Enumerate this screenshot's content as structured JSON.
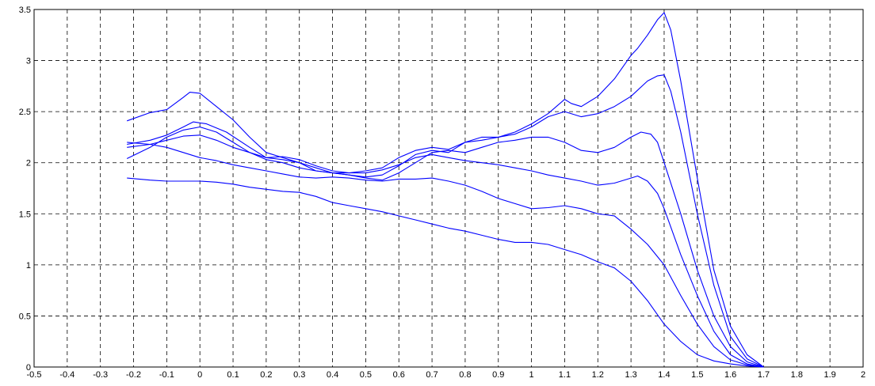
{
  "chart_data": {
    "type": "line",
    "title": "",
    "xlabel": "",
    "ylabel": "",
    "xlim": [
      -0.5,
      2
    ],
    "ylim": [
      0,
      3.5
    ],
    "grid": true,
    "x_ticks": [
      "-0.5",
      "-0.4",
      "-0.3",
      "-0.2",
      "-0.1",
      "0",
      "0.1",
      "0.2",
      "0.3",
      "0.4",
      "0.5",
      "0.6",
      "0.7",
      "0.8",
      "0.9",
      "1",
      "1.1",
      "1.2",
      "1.3",
      "1.4",
      "1.5",
      "1.6",
      "1.7",
      "1.8",
      "1.9",
      "2"
    ],
    "y_ticks": [
      "0",
      "0.5",
      "1",
      "1.5",
      "2",
      "2.5",
      "3",
      "3.5"
    ],
    "line_color": "#0000ff",
    "series": [
      {
        "points": [
          [
            -0.22,
            2.41
          ],
          [
            -0.15,
            2.49
          ],
          [
            -0.1,
            2.52
          ],
          [
            -0.05,
            2.64
          ],
          [
            -0.03,
            2.69
          ],
          [
            0,
            2.68
          ],
          [
            0.05,
            2.55
          ],
          [
            0.1,
            2.42
          ],
          [
            0.15,
            2.25
          ],
          [
            0.2,
            2.1
          ],
          [
            0.25,
            2.05
          ],
          [
            0.3,
            2.0
          ],
          [
            0.35,
            1.92
          ],
          [
            0.4,
            1.9
          ],
          [
            0.45,
            1.9
          ],
          [
            0.5,
            1.92
          ],
          [
            0.55,
            1.95
          ],
          [
            0.6,
            2.05
          ],
          [
            0.65,
            2.12
          ],
          [
            0.7,
            2.15
          ],
          [
            0.75,
            2.13
          ],
          [
            0.8,
            2.2
          ],
          [
            0.85,
            2.22
          ],
          [
            0.9,
            2.25
          ],
          [
            0.95,
            2.3
          ],
          [
            1.0,
            2.38
          ],
          [
            1.05,
            2.48
          ],
          [
            1.1,
            2.62
          ],
          [
            1.12,
            2.58
          ],
          [
            1.15,
            2.55
          ],
          [
            1.2,
            2.65
          ],
          [
            1.25,
            2.82
          ],
          [
            1.3,
            3.05
          ],
          [
            1.32,
            3.12
          ],
          [
            1.35,
            3.25
          ],
          [
            1.38,
            3.4
          ],
          [
            1.4,
            3.47
          ],
          [
            1.42,
            3.3
          ],
          [
            1.45,
            2.8
          ],
          [
            1.5,
            1.85
          ],
          [
            1.55,
            0.95
          ],
          [
            1.6,
            0.4
          ],
          [
            1.65,
            0.12
          ],
          [
            1.7,
            0.0
          ]
        ]
      },
      {
        "points": [
          [
            -0.22,
            2.18
          ],
          [
            -0.15,
            2.22
          ],
          [
            -0.1,
            2.27
          ],
          [
            -0.05,
            2.35
          ],
          [
            -0.02,
            2.4
          ],
          [
            0.02,
            2.38
          ],
          [
            0.08,
            2.3
          ],
          [
            0.15,
            2.15
          ],
          [
            0.2,
            2.05
          ],
          [
            0.25,
            2.03
          ],
          [
            0.3,
            2.0
          ],
          [
            0.35,
            1.95
          ],
          [
            0.4,
            1.9
          ],
          [
            0.45,
            1.88
          ],
          [
            0.5,
            1.86
          ],
          [
            0.55,
            1.88
          ],
          [
            0.6,
            1.97
          ],
          [
            0.65,
            2.08
          ],
          [
            0.7,
            2.12
          ],
          [
            0.75,
            2.1
          ],
          [
            0.8,
            2.2
          ],
          [
            0.85,
            2.25
          ],
          [
            0.9,
            2.25
          ],
          [
            0.95,
            2.28
          ],
          [
            1.0,
            2.35
          ],
          [
            1.05,
            2.45
          ],
          [
            1.1,
            2.5
          ],
          [
            1.15,
            2.45
          ],
          [
            1.2,
            2.48
          ],
          [
            1.25,
            2.55
          ],
          [
            1.3,
            2.65
          ],
          [
            1.35,
            2.8
          ],
          [
            1.38,
            2.85
          ],
          [
            1.4,
            2.86
          ],
          [
            1.42,
            2.7
          ],
          [
            1.45,
            2.3
          ],
          [
            1.5,
            1.5
          ],
          [
            1.55,
            0.8
          ],
          [
            1.6,
            0.3
          ],
          [
            1.65,
            0.08
          ],
          [
            1.7,
            0.0
          ]
        ]
      },
      {
        "points": [
          [
            -0.22,
            2.04
          ],
          [
            -0.15,
            2.15
          ],
          [
            -0.1,
            2.25
          ],
          [
            -0.05,
            2.32
          ],
          [
            0,
            2.35
          ],
          [
            0.05,
            2.3
          ],
          [
            0.1,
            2.2
          ],
          [
            0.15,
            2.1
          ],
          [
            0.2,
            2.03
          ],
          [
            0.25,
            2.0
          ],
          [
            0.3,
            1.95
          ],
          [
            0.35,
            1.92
          ],
          [
            0.4,
            1.9
          ],
          [
            0.45,
            1.88
          ],
          [
            0.5,
            1.85
          ],
          [
            0.55,
            1.83
          ],
          [
            0.6,
            1.9
          ],
          [
            0.65,
            2.0
          ],
          [
            0.7,
            2.1
          ],
          [
            0.75,
            2.12
          ],
          [
            0.8,
            2.1
          ],
          [
            0.85,
            2.15
          ],
          [
            0.9,
            2.2
          ],
          [
            0.95,
            2.22
          ],
          [
            1.0,
            2.25
          ],
          [
            1.05,
            2.25
          ],
          [
            1.1,
            2.2
          ],
          [
            1.15,
            2.12
          ],
          [
            1.2,
            2.1
          ],
          [
            1.25,
            2.15
          ],
          [
            1.3,
            2.25
          ],
          [
            1.33,
            2.3
          ],
          [
            1.36,
            2.28
          ],
          [
            1.38,
            2.2
          ],
          [
            1.4,
            2.0
          ],
          [
            1.45,
            1.5
          ],
          [
            1.5,
            0.95
          ],
          [
            1.55,
            0.5
          ],
          [
            1.6,
            0.2
          ],
          [
            1.65,
            0.05
          ],
          [
            1.7,
            0.0
          ]
        ]
      },
      {
        "points": [
          [
            -0.22,
            2.15
          ],
          [
            -0.15,
            2.18
          ],
          [
            -0.1,
            2.22
          ],
          [
            -0.05,
            2.26
          ],
          [
            0,
            2.27
          ],
          [
            0.05,
            2.22
          ],
          [
            0.1,
            2.15
          ],
          [
            0.15,
            2.1
          ],
          [
            0.2,
            2.05
          ],
          [
            0.25,
            2.06
          ],
          [
            0.3,
            2.03
          ],
          [
            0.35,
            1.97
          ],
          [
            0.4,
            1.92
          ],
          [
            0.45,
            1.9
          ],
          [
            0.5,
            1.9
          ],
          [
            0.55,
            1.93
          ],
          [
            0.6,
            1.98
          ],
          [
            0.65,
            2.05
          ],
          [
            0.7,
            2.08
          ],
          [
            0.75,
            2.05
          ],
          [
            0.8,
            2.02
          ],
          [
            0.85,
            2.0
          ],
          [
            0.9,
            1.98
          ],
          [
            0.95,
            1.95
          ],
          [
            1.0,
            1.92
          ],
          [
            1.05,
            1.88
          ],
          [
            1.1,
            1.85
          ],
          [
            1.15,
            1.82
          ],
          [
            1.2,
            1.78
          ],
          [
            1.25,
            1.8
          ],
          [
            1.3,
            1.85
          ],
          [
            1.32,
            1.87
          ],
          [
            1.35,
            1.82
          ],
          [
            1.38,
            1.7
          ],
          [
            1.4,
            1.55
          ],
          [
            1.45,
            1.1
          ],
          [
            1.5,
            0.7
          ],
          [
            1.55,
            0.35
          ],
          [
            1.6,
            0.12
          ],
          [
            1.65,
            0.03
          ],
          [
            1.7,
            0.0
          ]
        ]
      },
      {
        "points": [
          [
            -0.22,
            2.2
          ],
          [
            -0.15,
            2.18
          ],
          [
            -0.1,
            2.15
          ],
          [
            -0.05,
            2.1
          ],
          [
            0,
            2.05
          ],
          [
            0.05,
            2.02
          ],
          [
            0.1,
            1.98
          ],
          [
            0.15,
            1.95
          ],
          [
            0.2,
            1.92
          ],
          [
            0.25,
            1.89
          ],
          [
            0.3,
            1.86
          ],
          [
            0.35,
            1.85
          ],
          [
            0.4,
            1.86
          ],
          [
            0.45,
            1.85
          ],
          [
            0.5,
            1.83
          ],
          [
            0.55,
            1.82
          ],
          [
            0.6,
            1.84
          ],
          [
            0.65,
            1.84
          ],
          [
            0.7,
            1.85
          ],
          [
            0.75,
            1.82
          ],
          [
            0.8,
            1.78
          ],
          [
            0.85,
            1.72
          ],
          [
            0.9,
            1.65
          ],
          [
            0.95,
            1.6
          ],
          [
            1.0,
            1.55
          ],
          [
            1.05,
            1.56
          ],
          [
            1.1,
            1.58
          ],
          [
            1.15,
            1.55
          ],
          [
            1.2,
            1.5
          ],
          [
            1.25,
            1.48
          ],
          [
            1.3,
            1.35
          ],
          [
            1.35,
            1.2
          ],
          [
            1.4,
            1.0
          ],
          [
            1.45,
            0.7
          ],
          [
            1.5,
            0.42
          ],
          [
            1.55,
            0.2
          ],
          [
            1.6,
            0.07
          ],
          [
            1.65,
            0.02
          ],
          [
            1.7,
            0.0
          ]
        ]
      },
      {
        "points": [
          [
            -0.22,
            1.85
          ],
          [
            -0.15,
            1.83
          ],
          [
            -0.1,
            1.82
          ],
          [
            0,
            1.82
          ],
          [
            0.05,
            1.81
          ],
          [
            0.1,
            1.79
          ],
          [
            0.15,
            1.76
          ],
          [
            0.2,
            1.74
          ],
          [
            0.25,
            1.72
          ],
          [
            0.3,
            1.71
          ],
          [
            0.35,
            1.67
          ],
          [
            0.4,
            1.61
          ],
          [
            0.45,
            1.58
          ],
          [
            0.5,
            1.55
          ],
          [
            0.55,
            1.52
          ],
          [
            0.6,
            1.48
          ],
          [
            0.65,
            1.44
          ],
          [
            0.7,
            1.4
          ],
          [
            0.75,
            1.36
          ],
          [
            0.8,
            1.33
          ],
          [
            0.85,
            1.29
          ],
          [
            0.9,
            1.25
          ],
          [
            0.95,
            1.22
          ],
          [
            1.0,
            1.22
          ],
          [
            1.05,
            1.2
          ],
          [
            1.1,
            1.15
          ],
          [
            1.15,
            1.1
          ],
          [
            1.2,
            1.03
          ],
          [
            1.25,
            0.97
          ],
          [
            1.3,
            0.84
          ],
          [
            1.35,
            0.65
          ],
          [
            1.4,
            0.42
          ],
          [
            1.45,
            0.25
          ],
          [
            1.5,
            0.12
          ],
          [
            1.55,
            0.06
          ],
          [
            1.6,
            0.03
          ],
          [
            1.65,
            0.01
          ],
          [
            1.7,
            0.0
          ]
        ]
      }
    ]
  }
}
